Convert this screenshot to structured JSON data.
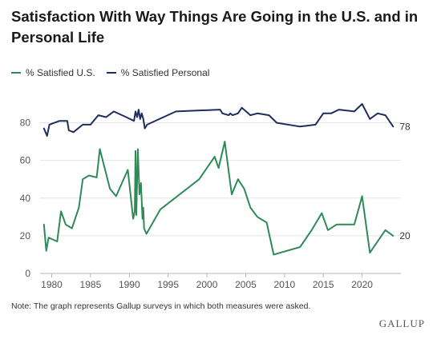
{
  "chart_data": {
    "type": "line",
    "title": "Satisfaction With Way Things Are Going in the U.S. and in Personal Life",
    "xlabel": "",
    "ylabel": "",
    "xlim": [
      1978.5,
      2025
    ],
    "ylim": [
      0,
      90
    ],
    "x_ticks": [
      1980,
      1985,
      1990,
      1995,
      2000,
      2005,
      2010,
      2015,
      2020
    ],
    "y_ticks": [
      0,
      20,
      40,
      60,
      80
    ],
    "grid": "horizontal",
    "legend_position": "top-left",
    "series": [
      {
        "name": "% Satisfied U.S.",
        "color": "#2e8b57",
        "end_label": "20",
        "points": [
          [
            1979.0,
            26
          ],
          [
            1979.3,
            12
          ],
          [
            1979.6,
            19
          ],
          [
            1980.7,
            17
          ],
          [
            1981.2,
            33
          ],
          [
            1981.8,
            26
          ],
          [
            1982.6,
            24
          ],
          [
            1983.5,
            35
          ],
          [
            1984.0,
            50
          ],
          [
            1984.8,
            52
          ],
          [
            1985.8,
            51
          ],
          [
            1986.2,
            66
          ],
          [
            1987.5,
            45
          ],
          [
            1988.3,
            41
          ],
          [
            1989.8,
            55
          ],
          [
            1990.5,
            29
          ],
          [
            1990.7,
            33
          ],
          [
            1990.8,
            65
          ],
          [
            1990.9,
            31
          ],
          [
            1991.1,
            66
          ],
          [
            1991.3,
            42
          ],
          [
            1991.5,
            48
          ],
          [
            1991.7,
            29
          ],
          [
            1991.8,
            35
          ],
          [
            1991.9,
            24
          ],
          [
            1992.2,
            21
          ],
          [
            1994.0,
            34
          ],
          [
            1999.0,
            50
          ],
          [
            2001.0,
            62
          ],
          [
            2001.5,
            56
          ],
          [
            2002.3,
            70
          ],
          [
            2003.2,
            42
          ],
          [
            2004.0,
            50
          ],
          [
            2004.8,
            45
          ],
          [
            2005.6,
            35
          ],
          [
            2006.5,
            30
          ],
          [
            2007.7,
            27
          ],
          [
            2008.6,
            10
          ],
          [
            2012.0,
            14
          ],
          [
            2013.5,
            23
          ],
          [
            2014.8,
            32
          ],
          [
            2015.6,
            23
          ],
          [
            2016.7,
            26
          ],
          [
            2019.0,
            26
          ],
          [
            2020.0,
            41
          ],
          [
            2021.0,
            11
          ],
          [
            2023.0,
            23
          ],
          [
            2024.0,
            20
          ]
        ]
      },
      {
        "name": "% Satisfied Personal",
        "color": "#1f2d5c",
        "end_label": "78",
        "points": [
          [
            1979.0,
            77
          ],
          [
            1979.4,
            73
          ],
          [
            1979.7,
            79
          ],
          [
            1981.0,
            81
          ],
          [
            1982.0,
            81
          ],
          [
            1982.2,
            76
          ],
          [
            1982.8,
            75
          ],
          [
            1984.0,
            79
          ],
          [
            1985.0,
            79
          ],
          [
            1986.0,
            84
          ],
          [
            1987.0,
            83
          ],
          [
            1988.0,
            86
          ],
          [
            1989.6,
            83
          ],
          [
            1990.6,
            81
          ],
          [
            1990.8,
            86
          ],
          [
            1991.0,
            83
          ],
          [
            1991.2,
            87
          ],
          [
            1991.4,
            82
          ],
          [
            1991.6,
            85
          ],
          [
            1991.8,
            82
          ],
          [
            1992.0,
            77
          ],
          [
            1992.3,
            79
          ],
          [
            1996.0,
            86
          ],
          [
            2001.7,
            87
          ],
          [
            2002.0,
            85
          ],
          [
            2002.8,
            84
          ],
          [
            2003.0,
            85
          ],
          [
            2003.3,
            84
          ],
          [
            2004.0,
            85
          ],
          [
            2004.5,
            88
          ],
          [
            2005.6,
            84
          ],
          [
            2006.5,
            85
          ],
          [
            2008.0,
            84
          ],
          [
            2009.0,
            80
          ],
          [
            2012.0,
            78
          ],
          [
            2014.0,
            79
          ],
          [
            2015.0,
            85
          ],
          [
            2016.0,
            85
          ],
          [
            2017.0,
            87
          ],
          [
            2019.0,
            86
          ],
          [
            2020.0,
            90
          ],
          [
            2021.0,
            82
          ],
          [
            2022.0,
            85
          ],
          [
            2023.0,
            84
          ],
          [
            2024.0,
            78
          ]
        ]
      }
    ]
  },
  "note": "Note: The graph represents Gallup surveys in which both measures were asked.",
  "brand": "GALLUP"
}
